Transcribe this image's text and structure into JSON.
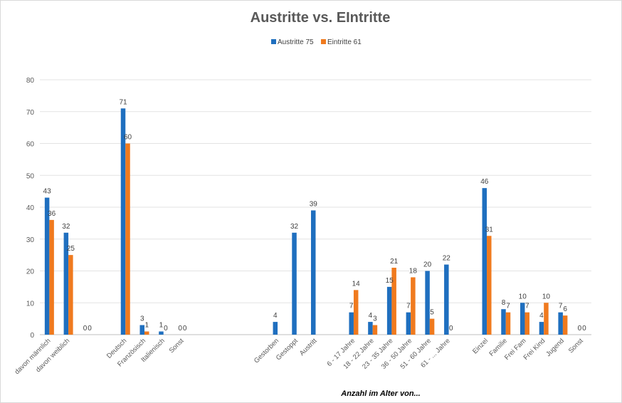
{
  "chart_data": {
    "type": "bar",
    "title": "Austritte vs. EIntritte",
    "xlabel": "Anzahl im Alter von...",
    "ylabel": "",
    "ylim": [
      0,
      80
    ],
    "yticks": [
      0,
      10,
      20,
      30,
      40,
      50,
      60,
      70,
      80
    ],
    "grid": true,
    "legend_position": "top",
    "legend": [
      "Austritte 75",
      "Eintritte 61"
    ],
    "categories": [
      "davon männlich",
      "davon weiblich",
      "",
      "",
      "Deutsch",
      "Französisch",
      "Italienisch",
      "Sonst",
      "",
      "",
      "",
      "",
      "Gestorben",
      "Gestoppt",
      "Austritt",
      "",
      "6 - 17 Jahre",
      "18 - 22 Jahre",
      "23 - 35 Jahre",
      "36 - 50 Jahre",
      "51 - 60 Jahre",
      "61 - ... Jahre",
      "",
      "Einzel",
      "Familie",
      "Frei Fam",
      "Frei Kind",
      "Jugend",
      "Sonst"
    ],
    "series": [
      {
        "name": "Austritte 75",
        "color": "#1f6fbf",
        "values": [
          43,
          32,
          0,
          null,
          71,
          3,
          1,
          0,
          null,
          null,
          null,
          null,
          4,
          32,
          39,
          null,
          7,
          4,
          15,
          7,
          20,
          22,
          null,
          46,
          8,
          10,
          4,
          7,
          0
        ],
        "labels": [
          "43",
          "32",
          "0",
          "",
          "71",
          "3",
          "1",
          "0",
          "",
          "",
          "",
          "",
          "4",
          "32",
          "39",
          "",
          "7",
          "4",
          "15",
          "7",
          "20",
          "22",
          "",
          "46",
          "8",
          "10",
          "4",
          "7",
          "0"
        ]
      },
      {
        "name": "Eintritte 61",
        "color": "#f07a1e",
        "values": [
          36,
          25,
          0,
          null,
          60,
          1,
          0,
          0,
          null,
          null,
          null,
          null,
          null,
          null,
          null,
          null,
          14,
          3,
          21,
          18,
          5,
          0,
          null,
          31,
          7,
          7,
          10,
          6,
          0
        ],
        "labels": [
          "36",
          "25",
          "0",
          "",
          "60",
          "1",
          "0",
          "0",
          "",
          "",
          "",
          "",
          "",
          "",
          "",
          "",
          "14",
          "3",
          "21",
          "18",
          "5",
          "0",
          "",
          "31",
          "7",
          "7",
          "10",
          "6",
          "0"
        ]
      }
    ]
  }
}
